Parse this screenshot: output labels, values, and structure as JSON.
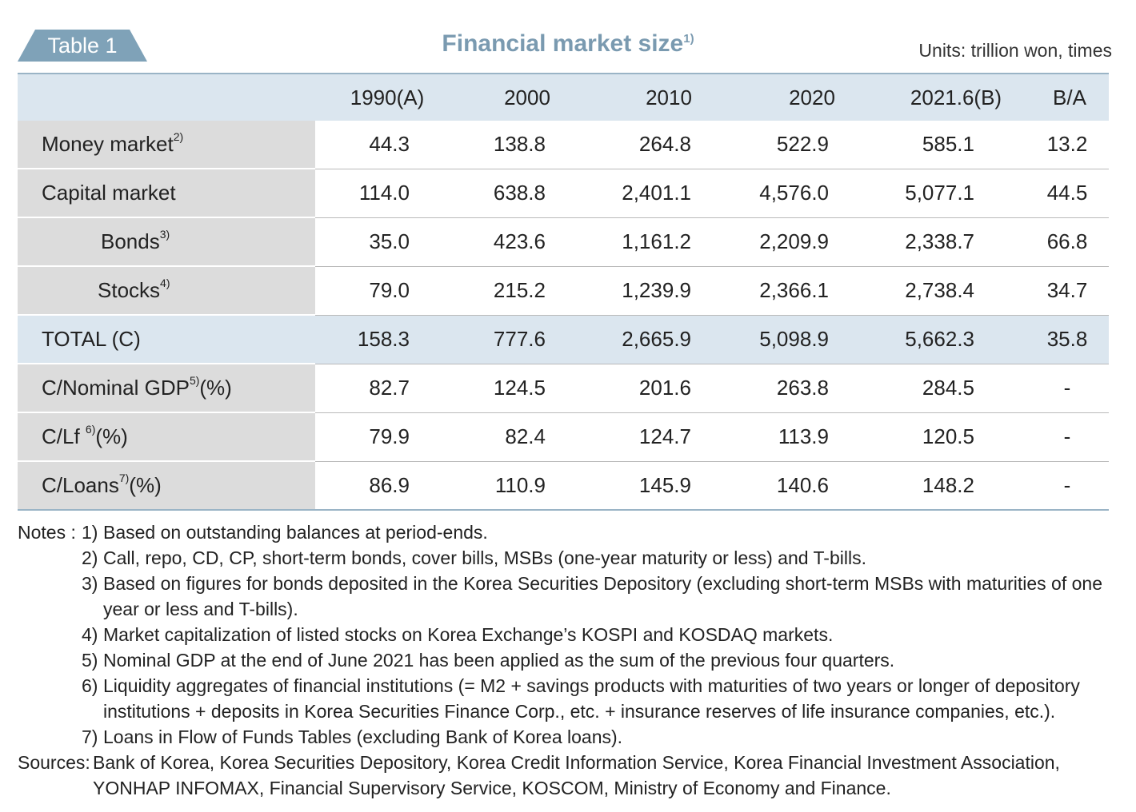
{
  "header": {
    "tag": "Table 1",
    "title": "Financial market size",
    "title_note": "1)",
    "units": "Units: trillion won, times"
  },
  "table": {
    "columns": [
      "",
      "1990(A)",
      "2000",
      "2010",
      "2020",
      "2021.6(B)",
      "B/A"
    ],
    "rows": [
      {
        "label": "Money market",
        "note": "2)",
        "values": [
          "44.3",
          "138.8",
          "264.8",
          "522.9",
          "585.1",
          "13.2"
        ]
      },
      {
        "label": "Capital market",
        "note": "",
        "values": [
          "114.0",
          "638.8",
          "2,401.1",
          "4,576.0",
          "5,077.1",
          "44.5"
        ]
      },
      {
        "label": "Bonds",
        "note": "3)",
        "values": [
          "35.0",
          "423.6",
          "1,161.2",
          "2,209.9",
          "2,338.7",
          "66.8"
        ]
      },
      {
        "label": "Stocks",
        "note": "4)",
        "values": [
          "79.0",
          "215.2",
          "1,239.9",
          "2,366.1",
          "2,738.4",
          "34.7"
        ]
      },
      {
        "label": "TOTAL (C)",
        "note": "",
        "values": [
          "158.3",
          "777.6",
          "2,665.9",
          "5,098.9",
          "5,662.3",
          "35.8"
        ]
      },
      {
        "label": "C/Nominal GDP",
        "note": "5)",
        "suffix": "(%)",
        "values": [
          "82.7",
          "124.5",
          "201.6",
          "263.8",
          "284.5",
          "-"
        ]
      },
      {
        "label": "C/Lf ",
        "note": "6)",
        "suffix": "(%)",
        "values": [
          "79.9",
          "82.4",
          "124.7",
          "113.9",
          "120.5",
          "-"
        ]
      },
      {
        "label": "C/Loans",
        "note": "7)",
        "suffix": "(%)",
        "values": [
          "86.9",
          "110.9",
          "145.9",
          "140.6",
          "148.2",
          "-"
        ]
      }
    ]
  },
  "notes": {
    "prefix": "Notes : ",
    "items": [
      {
        "num": "1)",
        "text": "Based on outstanding balances at period-ends."
      },
      {
        "num": "2)",
        "text": "Call, repo, CD, CP, short-term bonds, cover bills, MSBs (one-year maturity or less) and T-bills."
      },
      {
        "num": "3)",
        "text": "Based on figures for bonds deposited in the Korea Securities Depository (excluding short-term MSBs with maturities of one year or less and T-bills)."
      },
      {
        "num": "4)",
        "text": "Market capitalization of listed stocks on Korea Exchange’s KOSPI and KOSDAQ markets."
      },
      {
        "num": "5)",
        "text": "Nominal GDP at the end of June 2021 has been applied as the sum of the previous four quarters."
      },
      {
        "num": "6)",
        "text": "Liquidity aggregates of financial institutions (= M2 + savings products with maturities of two years or longer of depository institutions + deposits in Korea Securities Finance Corp., etc. + insurance reserves of life insurance companies, etc.)."
      },
      {
        "num": "7)",
        "text": "Loans in Flow of Funds Tables (excluding Bank of Korea loans)."
      }
    ],
    "sources_label": "Sources: ",
    "sources_text": "Bank of Korea, Korea Securities Depository, Korea Credit Information Service, Korea Financial Investment Association, YONHAP INFOMAX, Financial Supervisory Service, KOSCOM, Ministry of Economy and Finance."
  }
}
